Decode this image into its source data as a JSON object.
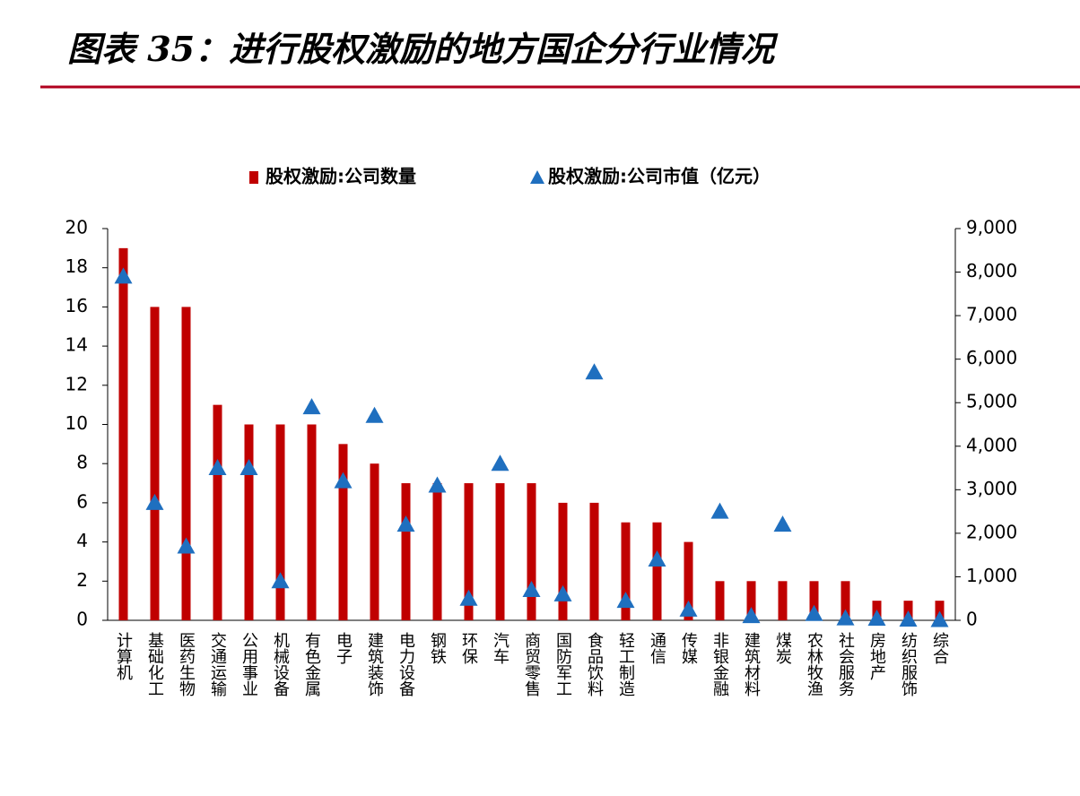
{
  "chart_data": {
    "type": "bar-triangle",
    "title": "图表 35：进行股权激励的地方国企分行业情况",
    "categories": [
      "计算机",
      "基础化工",
      "医药生物",
      "交通运输",
      "公用事业",
      "机械设备",
      "有色金属",
      "电子",
      "建筑装饰",
      "电力设备",
      "钢铁",
      "环保",
      "汽车",
      "商贸零售",
      "国防军工",
      "食品饮料",
      "轻工制造",
      "通信",
      "传媒",
      "非银金融",
      "建筑材料",
      "煤炭",
      "农林牧渔",
      "社会服务",
      "房地产",
      "纺织服饰",
      "综合"
    ],
    "series": [
      {
        "name": "股权激励:公司数量",
        "color": "#c00000",
        "values": [
          19,
          16,
          16,
          11,
          10,
          10,
          10,
          9,
          8,
          7,
          7,
          7,
          7,
          7,
          6,
          6,
          5,
          5,
          4,
          2,
          2,
          2,
          2,
          2,
          1,
          1,
          1
        ]
      },
      {
        "name": "股权激励:公司市值（亿元）",
        "color": "#1f6fbf",
        "axis": "y2",
        "values": [
          7900,
          2700,
          1700,
          3500,
          3500,
          900,
          4900,
          3200,
          4700,
          2200,
          3100,
          500,
          3600,
          700,
          600,
          5700,
          450,
          1400,
          250,
          2500,
          100,
          2200,
          150,
          50,
          40,
          20,
          10
        ]
      }
    ],
    "ylim": [
      0,
      20
    ],
    "yticks": [
      0,
      2,
      4,
      6,
      8,
      10,
      12,
      14,
      16,
      18,
      20
    ],
    "y2lim": [
      0,
      9000
    ],
    "y2ticks": [
      0,
      {
        "value": 1000,
        "label": "1,000"
      },
      {
        "value": 2000,
        "label": "2,000"
      },
      {
        "value": 3000,
        "label": "3,000"
      },
      {
        "value": 4000,
        "label": "4,000"
      },
      {
        "value": 5000,
        "label": "5,000"
      },
      {
        "value": 6000,
        "label": "6,000"
      },
      {
        "value": 7000,
        "label": "7,000"
      },
      {
        "value": 8000,
        "label": "8,000"
      },
      {
        "value": 9000,
        "label": "9,000"
      }
    ]
  }
}
